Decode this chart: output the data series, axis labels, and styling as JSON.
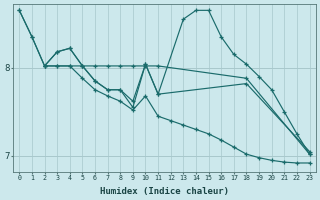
{
  "xlabel": "Humidex (Indice chaleur)",
  "bg_color": "#cce8ec",
  "line_color": "#1a6b6b",
  "grid_color": "#a8c8cc",
  "xlim": [
    -0.5,
    23.5
  ],
  "ylim": [
    6.82,
    8.72
  ],
  "yticks": [
    7,
    8
  ],
  "xticks": [
    0,
    1,
    2,
    3,
    4,
    5,
    6,
    7,
    8,
    9,
    10,
    11,
    12,
    13,
    14,
    15,
    16,
    17,
    18,
    19,
    20,
    21,
    22,
    23
  ],
  "lines": [
    {
      "x": [
        0,
        1,
        2,
        3,
        4,
        5,
        6,
        7,
        8,
        9,
        10,
        11,
        18,
        23
      ],
      "y": [
        8.65,
        8.35,
        8.02,
        8.02,
        8.02,
        8.02,
        8.02,
        8.02,
        8.02,
        8.02,
        8.02,
        8.02,
        7.88,
        7.02
      ]
    },
    {
      "x": [
        0,
        1,
        2,
        3,
        4,
        5,
        6,
        7,
        8,
        9,
        10,
        11,
        13,
        14,
        15,
        16,
        17,
        18,
        19,
        20,
        21,
        22,
        23
      ],
      "y": [
        8.65,
        8.35,
        8.02,
        8.18,
        8.22,
        8.02,
        7.85,
        7.75,
        7.75,
        7.55,
        8.04,
        7.7,
        8.55,
        8.65,
        8.65,
        8.35,
        8.15,
        8.04,
        7.9,
        7.75,
        7.5,
        7.25,
        7.02
      ]
    },
    {
      "x": [
        2,
        3,
        4,
        5,
        6,
        7,
        8,
        9,
        10,
        11,
        12,
        13,
        14,
        15,
        16,
        17,
        18,
        19,
        20,
        21,
        22,
        23
      ],
      "y": [
        8.02,
        8.02,
        8.02,
        7.88,
        7.75,
        7.68,
        7.62,
        7.52,
        7.68,
        7.45,
        7.4,
        7.35,
        7.3,
        7.25,
        7.18,
        7.1,
        7.02,
        6.98,
        6.95,
        6.93,
        6.92,
        6.92
      ]
    },
    {
      "x": [
        2,
        3,
        4,
        5,
        6,
        7,
        8,
        9,
        10,
        11,
        18,
        23
      ],
      "y": [
        8.02,
        8.18,
        8.22,
        8.02,
        7.85,
        7.75,
        7.75,
        7.62,
        8.04,
        7.7,
        7.82,
        7.05
      ]
    }
  ]
}
